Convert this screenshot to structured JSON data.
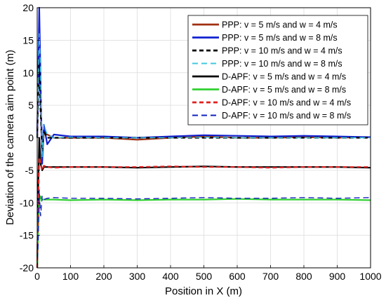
{
  "chart_data": {
    "type": "line",
    "title": "",
    "xlabel": "Position in X (m)",
    "ylabel": "Deviation of the camera aim point (m)",
    "xlim": [
      0,
      1000
    ],
    "ylim": [
      -20,
      20
    ],
    "xticks": [
      0,
      100,
      200,
      300,
      400,
      500,
      600,
      700,
      800,
      900,
      1000
    ],
    "yticks": [
      -20,
      -15,
      -10,
      -5,
      0,
      5,
      10,
      15,
      20
    ],
    "grid": true,
    "legend_position": "top-right",
    "series": [
      {
        "name": "PPP: v = 5 m/s and w = 4 m/s",
        "color": "#a0300f",
        "style": "solid",
        "width": "thick",
        "x": [
          0,
          3,
          6,
          10,
          15,
          20,
          30,
          50,
          100,
          200,
          300,
          400,
          500,
          600,
          700,
          800,
          900,
          1000
        ],
        "y": [
          0,
          8,
          14,
          6,
          -3,
          1,
          0.5,
          0,
          0,
          0,
          -0.3,
          0,
          0.2,
          0,
          0,
          0.1,
          0,
          0.1
        ]
      },
      {
        "name": "PPP: v = 5 m/s and w = 8 m/s",
        "color": "#1020d0",
        "style": "solid",
        "width": "thick",
        "x": [
          0,
          3,
          6,
          10,
          15,
          20,
          30,
          50,
          100,
          200,
          300,
          400,
          500,
          600,
          700,
          800,
          900,
          1000
        ],
        "y": [
          0,
          10,
          20,
          9,
          -4,
          2,
          -1,
          0.5,
          0.2,
          0.2,
          0,
          0.2,
          0.4,
          0.3,
          0.2,
          0.3,
          0.2,
          0.1
        ]
      },
      {
        "name": "PPP: v = 10 m/s and w = 4 m/s",
        "color": "#000000",
        "style": "dashed",
        "width": "thick",
        "x": [
          0,
          3,
          6,
          10,
          15,
          20,
          30,
          50,
          100,
          200,
          300,
          400,
          500,
          600,
          700,
          800,
          900,
          1000
        ],
        "y": [
          0,
          6,
          12,
          4,
          -2,
          1,
          0,
          0,
          0,
          0,
          0,
          0,
          0,
          0,
          0,
          0,
          0,
          0
        ]
      },
      {
        "name": "PPP: v = 10 m/s and w = 8 m/s",
        "color": "#40c8e0",
        "style": "dashed",
        "width": "normal",
        "x": [
          0,
          3,
          6,
          10,
          15,
          20,
          30,
          50,
          100,
          200,
          300,
          400,
          500,
          600,
          700,
          800,
          900,
          1000
        ],
        "y": [
          0,
          9,
          16,
          10,
          -3,
          2,
          0.5,
          0,
          0.1,
          0,
          0,
          0,
          0.1,
          0,
          0,
          0,
          0,
          0
        ]
      },
      {
        "name": "D-APF: v = 5 m/s and w = 4 m/s",
        "color": "#000000",
        "style": "solid",
        "width": "thick",
        "x": [
          0,
          3,
          6,
          10,
          15,
          20,
          30,
          50,
          100,
          200,
          300,
          400,
          500,
          600,
          700,
          800,
          900,
          1000
        ],
        "y": [
          -20,
          -8,
          0,
          -4,
          -5,
          -4.5,
          -4.5,
          -4.5,
          -4.5,
          -4.5,
          -4.6,
          -4.5,
          -4.4,
          -4.5,
          -4.5,
          -4.5,
          -4.5,
          -4.6
        ]
      },
      {
        "name": "D-APF: v = 5 m/s and w = 8 m/s",
        "color": "#30d030",
        "style": "solid",
        "width": "thick",
        "x": [
          0,
          3,
          6,
          10,
          15,
          20,
          30,
          50,
          100,
          200,
          300,
          400,
          500,
          600,
          700,
          800,
          900,
          1000
        ],
        "y": [
          -20,
          -14,
          -10,
          -9,
          -9.5,
          -9.5,
          -9.5,
          -9.5,
          -9.6,
          -9.5,
          -9.6,
          -9.5,
          -9.5,
          -9.4,
          -9.5,
          -9.5,
          -9.5,
          -9.6
        ]
      },
      {
        "name": "D-APF: v = 10 m/s and w = 4 m/s",
        "color": "#e02020",
        "style": "dashed",
        "width": "thick",
        "x": [
          0,
          3,
          6,
          10,
          15,
          20,
          30,
          50,
          100,
          200,
          300,
          400,
          500,
          600,
          700,
          800,
          900,
          1000
        ],
        "y": [
          -20,
          -10,
          -3,
          -4,
          -5,
          -4.3,
          -4.5,
          -4.6,
          -4.5,
          -4.5,
          -4.5,
          -4.4,
          -4.5,
          -4.5,
          -4.6,
          -4.5,
          -4.5,
          -4.5
        ]
      },
      {
        "name": "D-APF: v = 10 m/s and w = 8 m/s",
        "color": "#1020c0",
        "style": "dashed",
        "width": "normal",
        "x": [
          0,
          3,
          6,
          10,
          15,
          20,
          30,
          50,
          100,
          200,
          300,
          400,
          500,
          600,
          700,
          800,
          900,
          1000
        ],
        "y": [
          -20,
          -16,
          -8,
          -12,
          -9,
          -9.5,
          -9.3,
          -9.2,
          -9.3,
          -9.3,
          -9.4,
          -9.3,
          -9.2,
          -9.3,
          -9.3,
          -9.2,
          -9.3,
          -9.2
        ]
      }
    ]
  }
}
